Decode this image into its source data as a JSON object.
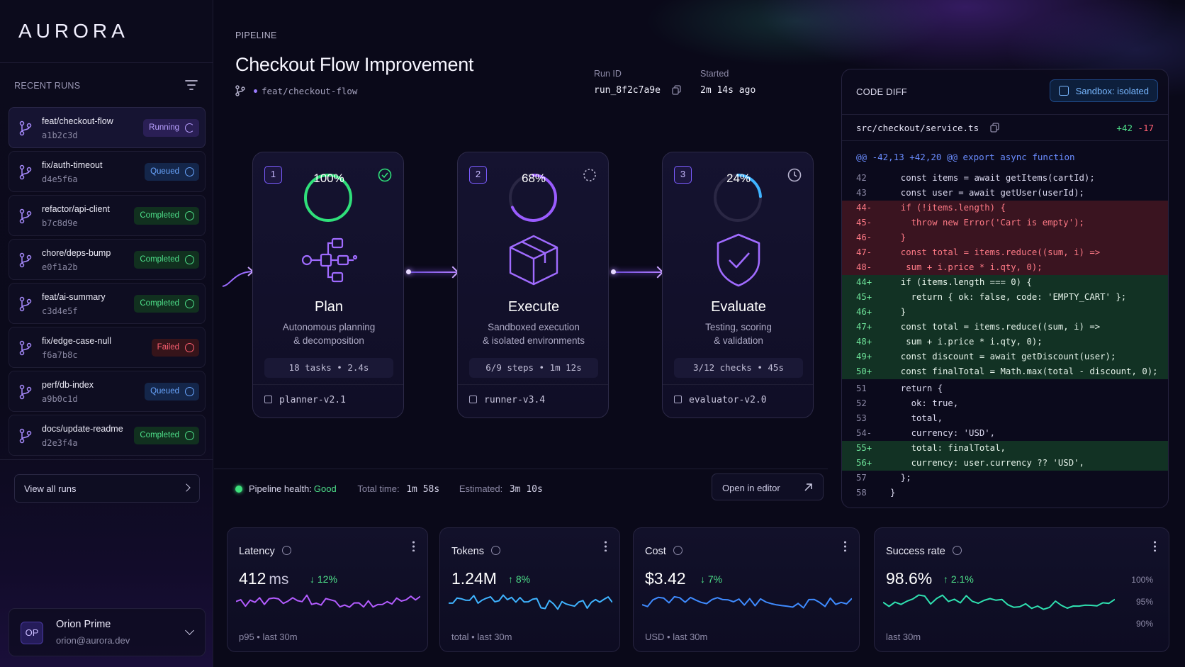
{
  "app": {
    "logo": "AURORA"
  },
  "sidebar": {
    "section_label": "RECENT RUNS",
    "runs": [
      {
        "branch": "feat/checkout-flow",
        "hash": "a1b2c3d",
        "status": "Running"
      },
      {
        "branch": "fix/auth-timeout",
        "hash": "d4e5f6a",
        "status": "Queued"
      },
      {
        "branch": "refactor/api-client",
        "hash": "b7c8d9e",
        "status": "Completed"
      },
      {
        "branch": "chore/deps-bump",
        "hash": "e0f1a2b",
        "status": "Completed"
      },
      {
        "branch": "feat/ai-summary",
        "hash": "c3d4e5f",
        "status": "Completed"
      },
      {
        "branch": "fix/edge-case-null",
        "hash": "f6a7b8c",
        "status": "Failed"
      },
      {
        "branch": "perf/db-index",
        "hash": "a9b0c1d",
        "status": "Queued"
      },
      {
        "branch": "docs/update-readme",
        "hash": "d2e3f4a",
        "status": "Completed"
      }
    ],
    "view_all_label": "View all runs",
    "user": {
      "initials": "OP",
      "name": "Orion Prime",
      "email": "orion@aurora.dev"
    }
  },
  "header": {
    "section_label": "PIPELINE",
    "title": "Checkout Flow Improvement",
    "branch": "feat/checkout-flow",
    "run_id_label": "Run ID",
    "run_id": "run_8f2c7a9e",
    "started_label": "Started",
    "started": "2m 14s ago"
  },
  "stages": [
    {
      "num": "1",
      "progress": 100,
      "progress_label": "100%",
      "name": "Plan",
      "desc1": "Autonomous planning",
      "desc2": "& decomposition",
      "stat": "18 tasks  •  2.4s",
      "model": "planner-v2.1",
      "status_icon": "check-circle-icon",
      "color": "#2fe07a"
    },
    {
      "num": "2",
      "progress": 68,
      "progress_label": "68%",
      "name": "Execute",
      "desc1": "Sandboxed execution",
      "desc2": "& isolated environments",
      "stat": "6/9 steps  •  1m 12s",
      "model": "runner-v3.4",
      "status_icon": "spinner-icon",
      "color": "#9a5cff"
    },
    {
      "num": "3",
      "progress": 24,
      "progress_label": "24%",
      "name": "Evaluate",
      "desc1": "Testing, scoring",
      "desc2": "& validation",
      "stat": "3/12 checks  •  45s",
      "model": "evaluator-v2.0",
      "status_icon": "clock-icon",
      "color": "#3fb3ff"
    }
  ],
  "footer_bar": {
    "health_label": "Pipeline health:",
    "health_value": "Good",
    "total_time_label": "Total time:",
    "total_time": "1m 58s",
    "estimated_label": "Estimated:",
    "estimated": "3m 10s",
    "open_editor_label": "Open in editor"
  },
  "code_diff": {
    "title": "CODE DIFF",
    "sandbox_label": "Sandbox: isolated",
    "file": "src/checkout/service.ts",
    "additions": "+42",
    "deletions": "-17",
    "hunk": "@@ -42,13 +42,20 @@  export async function",
    "lines": [
      {
        "n": "42",
        "t": "ctx",
        "code": "  const items = await getItems(cartId);"
      },
      {
        "n": "43",
        "t": "ctx",
        "code": "  const user = await getUser(userId);"
      },
      {
        "n": "44-",
        "t": "del",
        "code": "  if (!items.length) {"
      },
      {
        "n": "45-",
        "t": "del",
        "code": "    throw new Error('Cart is empty');"
      },
      {
        "n": "46-",
        "t": "del",
        "code": "  }"
      },
      {
        "n": "47-",
        "t": "del",
        "code": "  const total = items.reduce((sum, i) =>"
      },
      {
        "n": "48-",
        "t": "del",
        "code": "   sum + i.price * i.qty, 0);"
      },
      {
        "n": "44+",
        "t": "add",
        "code": "  if (items.length === 0) {"
      },
      {
        "n": "45+",
        "t": "add",
        "code": "    return { ok: false, code: 'EMPTY_CART' };"
      },
      {
        "n": "46+",
        "t": "add",
        "code": "  }"
      },
      {
        "n": "47+",
        "t": "add",
        "code": "  const total = items.reduce((sum, i) =>"
      },
      {
        "n": "48+",
        "t": "add",
        "code": "   sum + i.price * i.qty, 0);"
      },
      {
        "n": "49+",
        "t": "add",
        "code": "  const discount = await getDiscount(user);"
      },
      {
        "n": "50+",
        "t": "add",
        "code": "  const finalTotal = Math.max(total - discount, 0);"
      },
      {
        "n": "51",
        "t": "ctx",
        "code": "  return {"
      },
      {
        "n": "52",
        "t": "ctx",
        "code": "    ok: true,"
      },
      {
        "n": "53",
        "t": "ctx",
        "code": "    total,"
      },
      {
        "n": "54-",
        "t": "ctx",
        "code": "    currency: 'USD',"
      },
      {
        "n": "55+",
        "t": "add",
        "code": "    total: finalTotal,"
      },
      {
        "n": "56+",
        "t": "add",
        "code": "    currency: user.currency ?? 'USD',"
      },
      {
        "n": "57",
        "t": "ctx",
        "code": "  };"
      },
      {
        "n": "58",
        "t": "ctx",
        "code": "}"
      }
    ]
  },
  "metrics": [
    {
      "title": "Latency",
      "value": "412",
      "unit": "ms",
      "delta": "↓ 12%",
      "sub": "p95 • last 30m",
      "color": "#b35cff"
    },
    {
      "title": "Tokens",
      "value": "1.24M",
      "unit": "",
      "delta": "↑ 8%",
      "sub": "total • last 30m",
      "color": "#3fb3ff"
    },
    {
      "title": "Cost",
      "value": "$3.42",
      "unit": "",
      "delta": "↓ 7%",
      "sub": "USD • last 30m",
      "color": "#3f8bff"
    },
    {
      "title": "Success rate",
      "value": "98.6%",
      "unit": "",
      "delta": "↑ 2.1%",
      "sub": "last 30m",
      "color": "#2fe0b0",
      "axis": [
        "100%",
        "95%",
        "90%"
      ]
    }
  ]
}
